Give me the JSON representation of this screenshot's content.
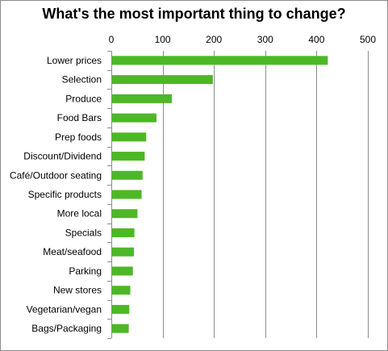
{
  "chart_data": {
    "type": "bar",
    "orientation": "horizontal",
    "title": "What's the most important thing to change?",
    "xlabel": "",
    "ylabel": "",
    "xlim": [
      0,
      500
    ],
    "x_ticks": [
      0,
      100,
      200,
      300,
      400,
      500
    ],
    "x_axis_position": "top",
    "grid": true,
    "legend": "none",
    "bar_color": "#4db826",
    "categories": [
      "Lower prices",
      "Selection",
      "Produce",
      "Food Bars",
      "Prep foods",
      "Discount/Dividend",
      "Café/Outdoor seating",
      "Specific products",
      "More local",
      "Specials",
      "Meat/seafood",
      "Parking",
      "New stores",
      "Vegetarian/vegan",
      "Bags/Packaging"
    ],
    "values": [
      422,
      198,
      118,
      88,
      68,
      65,
      61,
      59,
      51,
      45,
      44,
      42,
      37,
      35,
      34
    ]
  }
}
